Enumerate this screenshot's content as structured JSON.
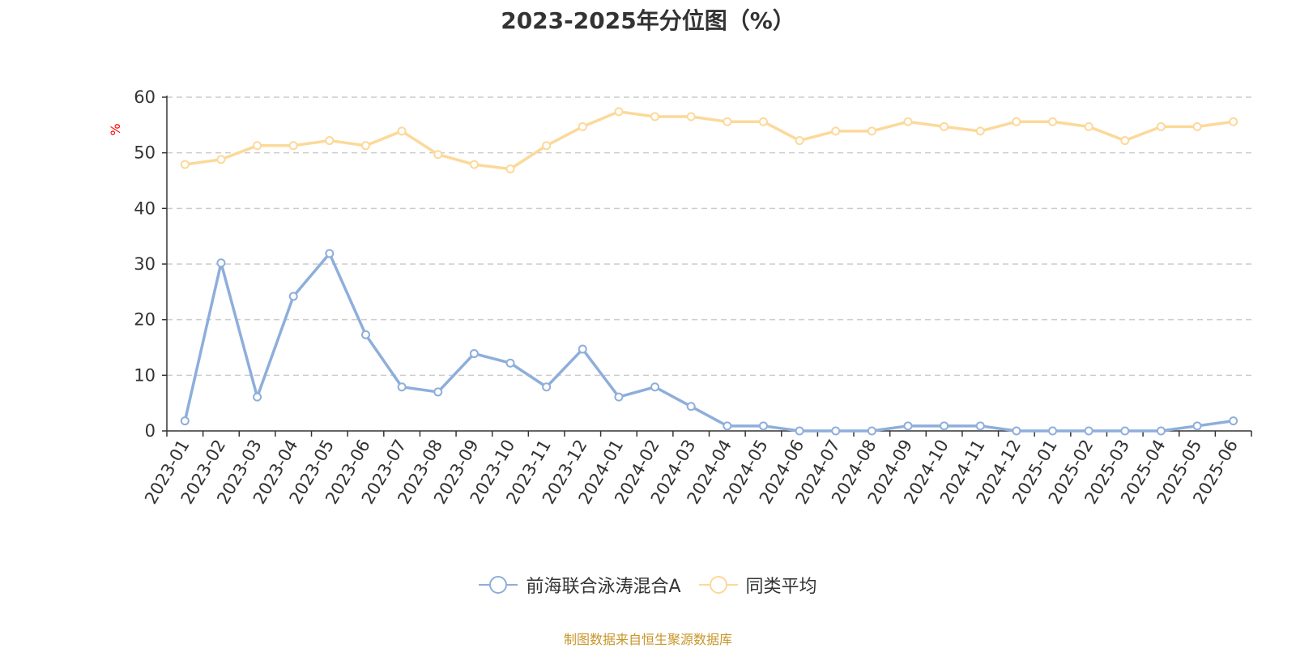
{
  "chart_data": {
    "type": "line",
    "title": "2023-2025年分位图（%）",
    "ylabel": "%",
    "xlabel": "",
    "ylim": [
      0,
      60
    ],
    "yticks": [
      0,
      10,
      20,
      30,
      40,
      50,
      60
    ],
    "grid": true,
    "legend_position": "bottom",
    "categories": [
      "2023-01",
      "2023-02",
      "2023-03",
      "2023-04",
      "2023-05",
      "2023-06",
      "2023-07",
      "2023-08",
      "2023-09",
      "2023-10",
      "2023-11",
      "2023-12",
      "2024-01",
      "2024-02",
      "2024-03",
      "2024-04",
      "2024-05",
      "2024-06",
      "2024-07",
      "2024-08",
      "2024-09",
      "2024-10",
      "2024-11",
      "2024-12",
      "2025-01",
      "2025-02",
      "2025-03",
      "2025-04",
      "2025-05",
      "2025-06"
    ],
    "series": [
      {
        "name": "前海联合泳涛混合A",
        "color": "#8eaedb",
        "values": [
          1.8,
          30.2,
          6.1,
          24.2,
          31.9,
          17.3,
          7.9,
          7.0,
          13.9,
          12.2,
          7.9,
          14.7,
          6.1,
          7.9,
          4.4,
          0.9,
          0.9,
          0.0,
          0.0,
          0.0,
          0.9,
          0.9,
          0.9,
          0.0,
          0.0,
          0.0,
          0.0,
          0.0,
          0.9,
          1.8
        ]
      },
      {
        "name": "同类平均",
        "color": "#fcd99a",
        "values": [
          47.9,
          48.8,
          51.3,
          51.3,
          52.2,
          51.3,
          53.9,
          49.7,
          47.9,
          47.1,
          51.3,
          54.7,
          57.4,
          56.5,
          56.5,
          55.6,
          55.6,
          52.2,
          53.9,
          53.9,
          55.6,
          54.7,
          53.9,
          55.6,
          55.6,
          54.7,
          52.2,
          54.7,
          54.7,
          55.6
        ]
      }
    ]
  },
  "source": {
    "text": "制图数据来自恒生聚源数据库",
    "color": "#c8962a"
  }
}
